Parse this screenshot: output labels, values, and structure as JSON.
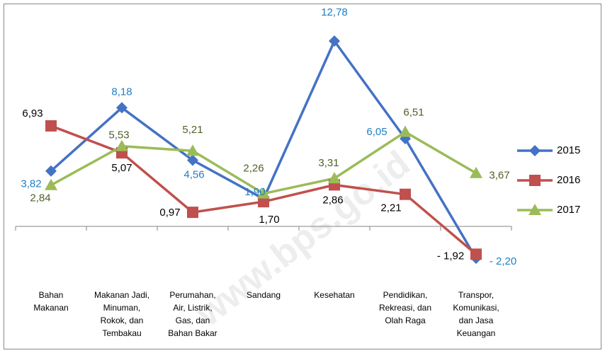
{
  "chart_data": {
    "type": "line",
    "categories": [
      "Bahan\nMakanan",
      "Makanan Jadi,\nMinuman,\nRokok, dan\nTembakau",
      "Perumahan,\nAir, Listrik,\nGas, dan\nBahan Bakar",
      "Sandang",
      "Kesehatan",
      "Pendidikan,\nRekreasi, dan\nOlah Raga",
      "Transpor,\nKomunikasi,\ndan Jasa\nKeuangan"
    ],
    "series": [
      {
        "name": "2015",
        "color": "#4472c4",
        "label_color": "#1f7fc4",
        "marker": "diamond",
        "values": [
          3.82,
          8.18,
          4.56,
          1.9,
          12.78,
          6.05,
          -2.2
        ],
        "value_labels": [
          "3,82",
          "8,18",
          "4,56",
          "1,90",
          "12,78",
          "6,05",
          "-  2,20"
        ]
      },
      {
        "name": "2016",
        "color": "#c0504d",
        "label_color": "#000000",
        "marker": "square",
        "values": [
          6.93,
          5.07,
          0.97,
          1.7,
          2.86,
          2.21,
          -1.92
        ],
        "value_labels": [
          "6,93",
          "5,07",
          "0,97",
          "1,70",
          "2,86",
          "2,21",
          "-  1,92"
        ]
      },
      {
        "name": "2017",
        "color": "#9bbb59",
        "label_color": "#4f6228",
        "marker": "triangle",
        "values": [
          2.84,
          5.53,
          5.21,
          2.26,
          3.31,
          6.51,
          3.67
        ],
        "value_labels": [
          "2,84",
          "5,53",
          "5,21",
          "2,26",
          "3,31",
          "6,51",
          "3,67"
        ]
      }
    ],
    "ylim": [
      -4,
      14
    ],
    "legend": "right",
    "watermark": "www.bps.go.id"
  }
}
